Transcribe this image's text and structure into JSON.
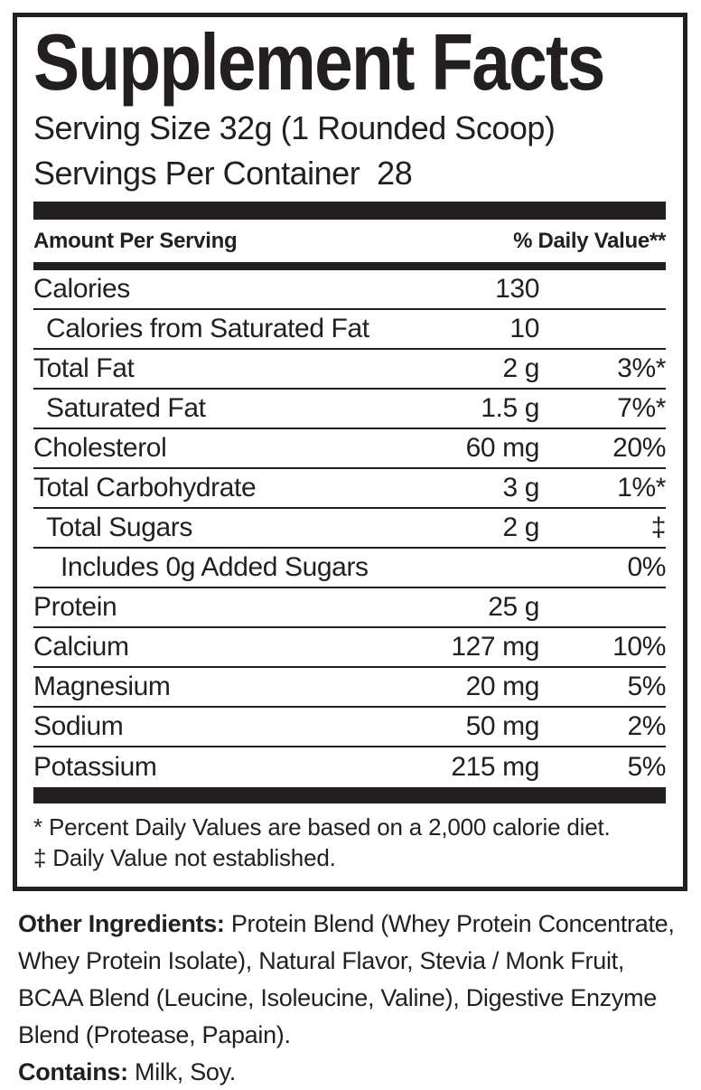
{
  "colors": {
    "ink": "#231f20",
    "background": "#ffffff"
  },
  "panel": {
    "title": "Supplement Facts",
    "serving_size_line": "Serving Size 32g (1 Rounded Scoop)",
    "servings_per_container_line": "Servings Per Container  28",
    "column_headers": {
      "amount": "Amount Per Serving",
      "daily_value": "% Daily Value**"
    },
    "rows": [
      {
        "name": "Calories",
        "amount": "130",
        "dv": "",
        "indent": 0
      },
      {
        "name": "Calories from Saturated Fat",
        "amount": "10",
        "dv": "",
        "indent": 1
      },
      {
        "name": "Total Fat",
        "amount": "2 g",
        "dv": "3%*",
        "indent": 0
      },
      {
        "name": "Saturated Fat",
        "amount": "1.5 g",
        "dv": "7%*",
        "indent": 1
      },
      {
        "name": "Cholesterol",
        "amount": "60 mg",
        "dv": "20%",
        "indent": 0
      },
      {
        "name": "Total Carbohydrate",
        "amount": "3 g",
        "dv": "1%*",
        "indent": 0
      },
      {
        "name": "Total Sugars",
        "amount": "2 g",
        "dv": "‡",
        "indent": 1
      },
      {
        "name": "Includes 0g Added Sugars",
        "amount": "",
        "dv": "0%",
        "indent": 2
      },
      {
        "name": "Protein",
        "amount": "25 g",
        "dv": "",
        "indent": 0
      },
      {
        "name": "Calcium",
        "amount": "127 mg",
        "dv": "10%",
        "indent": 0
      },
      {
        "name": "Magnesium",
        "amount": "20 mg",
        "dv": "5%",
        "indent": 0
      },
      {
        "name": "Sodium",
        "amount": "50 mg",
        "dv": "2%",
        "indent": 0
      },
      {
        "name": "Potassium",
        "amount": "215 mg",
        "dv": "5%",
        "indent": 0
      }
    ],
    "footnotes": [
      "* Percent Daily Values are based on a 2,000 calorie diet.",
      "‡ Daily Value not established."
    ]
  },
  "ingredients": {
    "other_label": "Other Ingredients:",
    "other_text": " Protein Blend (Whey Protein Concentrate, Whey Protein Isolate), Natural Flavor, Stevia / Monk Fruit, BCAA Blend (Leucine, Isoleucine, Valine), Digestive Enzyme Blend (Protease, Papain).",
    "contains_label": "Contains:",
    "contains_text": " Milk, Soy."
  }
}
